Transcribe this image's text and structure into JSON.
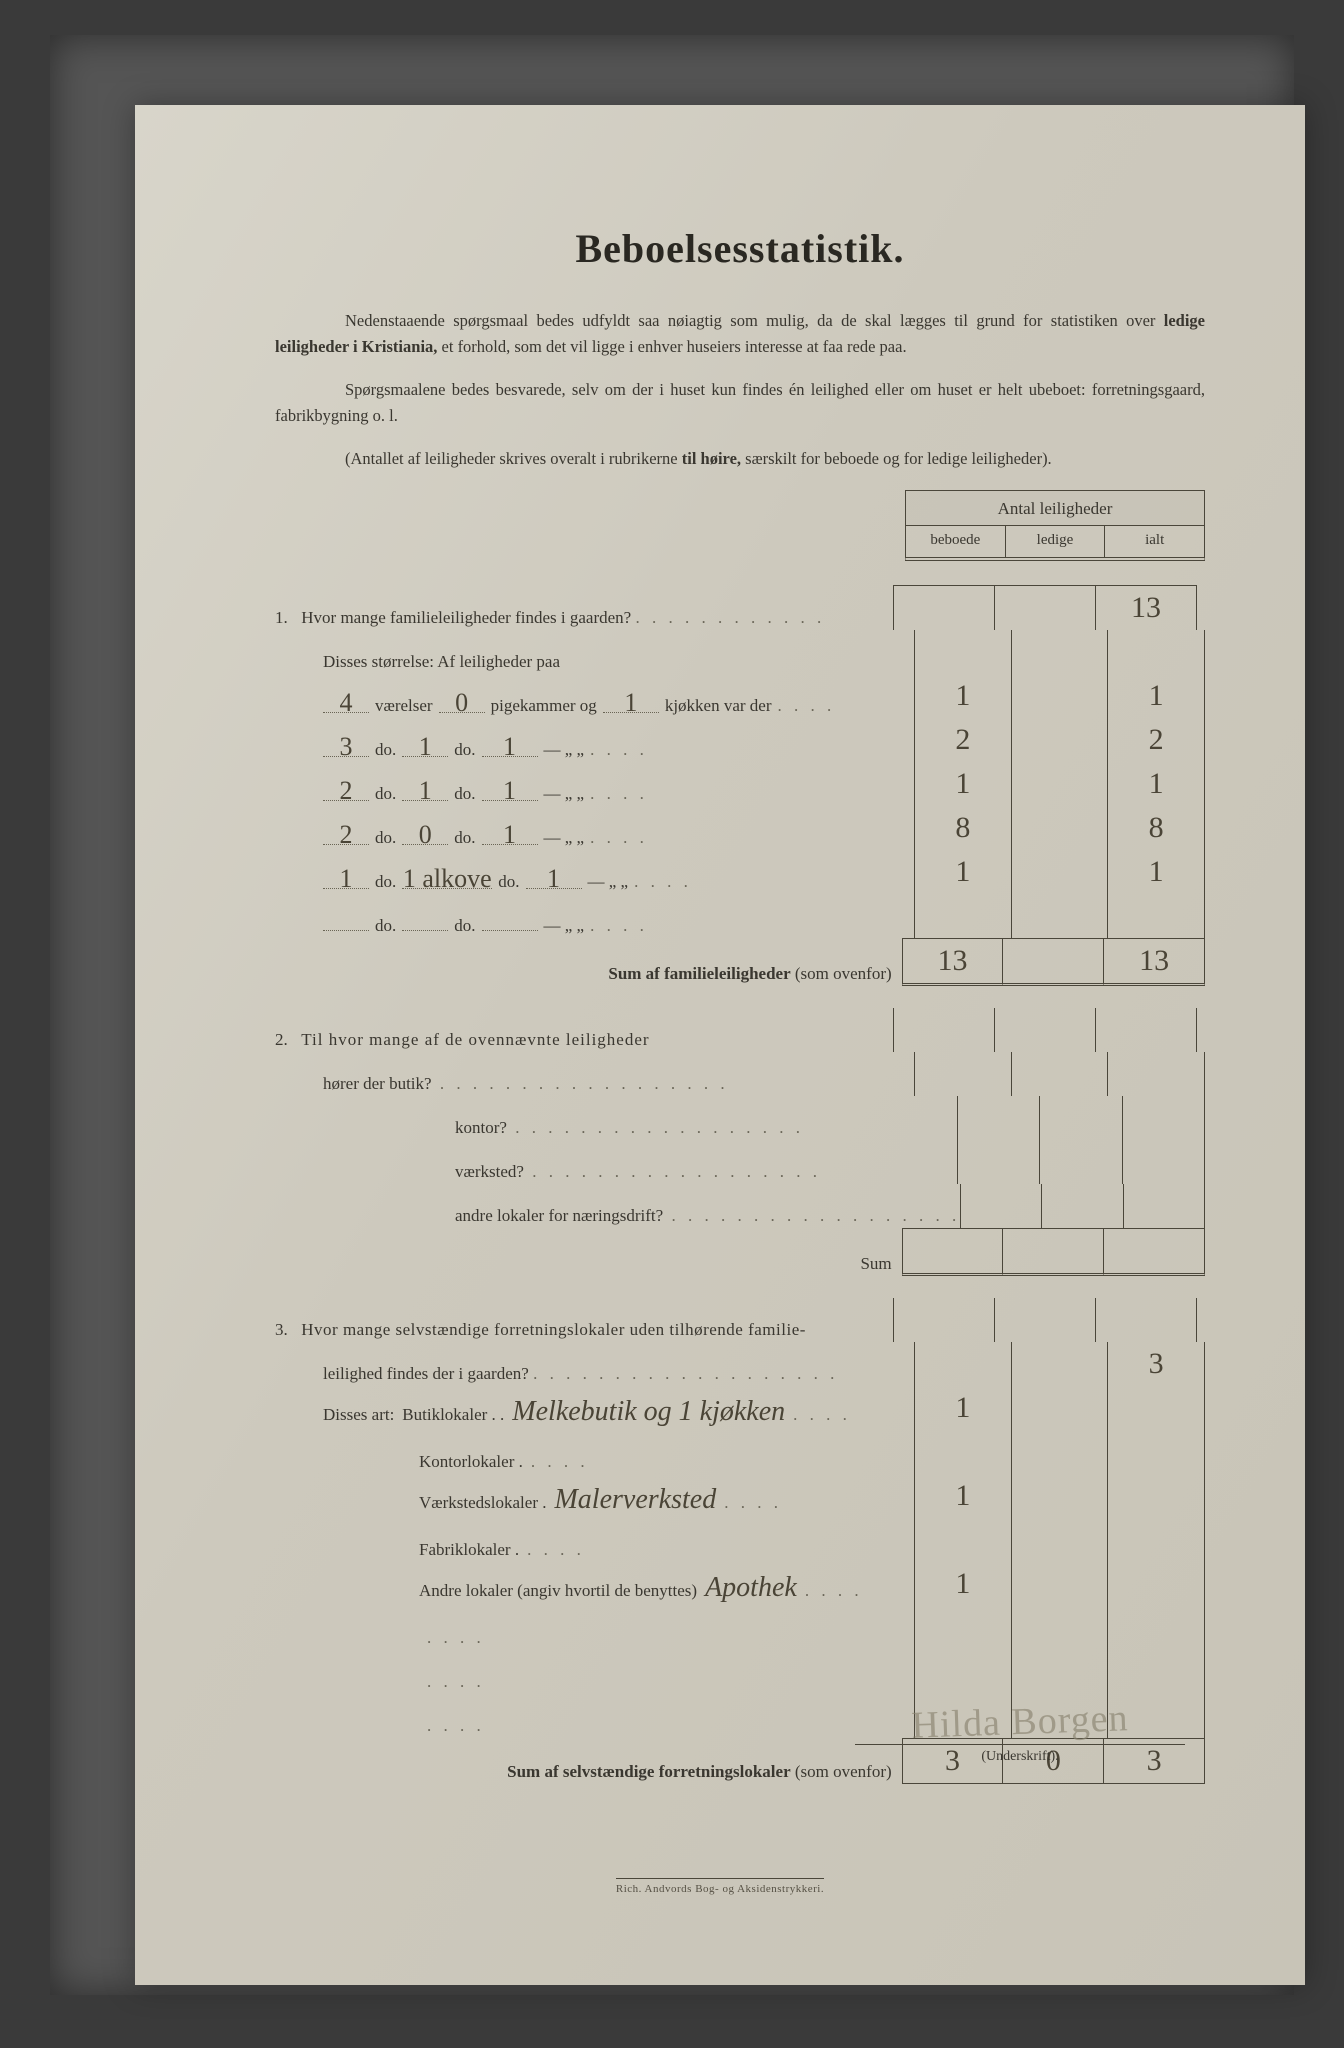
{
  "title": "Beboelsesstatistik.",
  "intro": {
    "p1a": "Nedenstaaende spørgsmaal bedes udfyldt saa nøiagtig som mulig, da de skal lægges til grund for statistiken over ",
    "p1b": "ledige leiligheder i Kristiania,",
    "p1c": " et forhold, som det vil ligge i enhver huseiers interesse at faa rede paa.",
    "p2": "Spørgsmaalene bedes besvarede, selv om der i huset kun findes én leilighed eller om huset er helt ubeboet: forretningsgaard, fabrikbygning o. l.",
    "p3a": "(Antallet af leiligheder skrives overalt i rubrikerne ",
    "p3b": "til høire,",
    "p3c": " særskilt for beboede og for ledige leiligheder)."
  },
  "table_header": {
    "top": "Antal leiligheder",
    "col1": "beboede",
    "col2": "ledige",
    "col3": "ialt"
  },
  "q1": {
    "num": "1.",
    "question": "Hvor mange familieleiligheder findes i gaarden?",
    "total": "13",
    "subhead": "Disses størrelse:   Af leiligheder paa",
    "rows": [
      {
        "vaer": "4",
        "pige": "0",
        "kjok": "1",
        "lab1": "værelser",
        "lab2": "pigekammer og",
        "lab3": "kjøkken var der",
        "b": "1",
        "l": "",
        "i": "1"
      },
      {
        "vaer": "3",
        "pige": "1",
        "kjok": "1",
        "lab1": "do.",
        "lab2": "do.",
        "lab3": "—     „   „",
        "b": "2",
        "l": "",
        "i": "2"
      },
      {
        "vaer": "2",
        "pige": "1",
        "kjok": "1",
        "lab1": "do.",
        "lab2": "do.",
        "lab3": "—     „   „",
        "b": "1",
        "l": "",
        "i": "1"
      },
      {
        "vaer": "2",
        "pige": "0",
        "kjok": "1",
        "lab1": "do.",
        "lab2": "do.",
        "lab3": "—     „   „",
        "b": "8",
        "l": "",
        "i": "8"
      },
      {
        "vaer": "1",
        "pige": "1 alkove",
        "kjok": "1",
        "lab1": "do.",
        "lab2": "do.",
        "lab3": "—     „   „",
        "b": "1",
        "l": "",
        "i": "1"
      },
      {
        "vaer": "",
        "pige": "",
        "kjok": "",
        "lab1": "do.",
        "lab2": "do.",
        "lab3": "—     „   „",
        "b": "",
        "l": "",
        "i": ""
      }
    ],
    "sum_label": "Sum af familieleiligheder",
    "sum_note": "(som ovenfor)",
    "sum_b": "13",
    "sum_l": "",
    "sum_i": "13"
  },
  "q2": {
    "num": "2.",
    "lead": "Til hvor mange af de ovennævnte leiligheder",
    "rows": [
      {
        "label": "hører der butik?",
        "b": "",
        "l": "",
        "i": ""
      },
      {
        "label": "kontor?",
        "b": "",
        "l": "",
        "i": ""
      },
      {
        "label": "værksted?",
        "b": "",
        "l": "",
        "i": ""
      },
      {
        "label": "andre lokaler for næringsdrift?",
        "b": "",
        "l": "",
        "i": ""
      }
    ],
    "sum": "Sum"
  },
  "q3": {
    "num": "3.",
    "lead1": "Hvor mange selvstændige forretningslokaler uden tilhørende familie-",
    "lead2": "leilighed findes der i gaarden?",
    "total": "3",
    "art": "Disses art:",
    "rows": [
      {
        "label": "Butiklokaler . .",
        "hand": "Melkebutik og 1 kjøkken",
        "b": "1",
        "l": "",
        "i": ""
      },
      {
        "label": "Kontorlokaler .",
        "hand": "",
        "b": "",
        "l": "",
        "i": ""
      },
      {
        "label": "Værkstedslokaler .",
        "hand": "Malerverksted",
        "b": "1",
        "l": "",
        "i": ""
      },
      {
        "label": "Fabriklokaler .",
        "hand": "",
        "b": "",
        "l": "",
        "i": ""
      },
      {
        "label": "Andre lokaler (angiv hvortil de benyttes)",
        "hand": "Apothek",
        "b": "1",
        "l": "",
        "i": ""
      },
      {
        "label": "",
        "hand": "",
        "b": "",
        "l": "",
        "i": ""
      },
      {
        "label": "",
        "hand": "",
        "b": "",
        "l": "",
        "i": ""
      },
      {
        "label": "",
        "hand": "",
        "b": "",
        "l": "",
        "i": ""
      }
    ],
    "sum_label": "Sum af selvstændige forretningslokaler",
    "sum_note": "(som ovenfor)",
    "sum_b": "3",
    "sum_l": "0",
    "sum_i": "3"
  },
  "signature": {
    "name": "Hilda Borgen",
    "caption": "(Underskrift)."
  },
  "imprint": "Rich. Andvords Bog- og Aksidenstrykkeri."
}
